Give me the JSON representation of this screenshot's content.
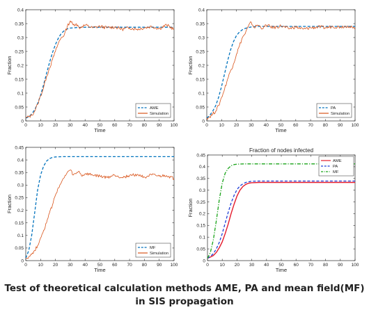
{
  "colors": {
    "ame": "#0072BD",
    "simulation": "#D95319",
    "pa": "#1f3fd8",
    "mf": "#18a318",
    "ame_red": "#e41a2c"
  },
  "caption": "Test of theoretical calculation methods AME, PA and mean field(MF) in SIS propagation",
  "chart_data": [
    {
      "type": "line",
      "title": "",
      "xlabel": "Time",
      "ylabel": "Fraction",
      "xlim": [
        0,
        100
      ],
      "ylim": [
        0,
        0.4
      ],
      "xticks": [
        "0",
        "10",
        "20",
        "30",
        "40",
        "50",
        "60",
        "70",
        "80",
        "90",
        "100"
      ],
      "yticks": [
        "0",
        "0.05",
        "0.1",
        "0.15",
        "0.2",
        "0.25",
        "0.3",
        "0.35",
        "0.4"
      ],
      "legend": "bottom-right",
      "series": [
        {
          "name": "AME",
          "style": "dashed",
          "color": "#0072BD",
          "x": [
            0,
            2,
            4,
            6,
            8,
            10,
            12,
            14,
            16,
            18,
            20,
            22,
            24,
            26,
            28,
            30,
            35,
            40,
            50,
            60,
            70,
            80,
            90,
            100
          ],
          "y": [
            0.01,
            0.015,
            0.025,
            0.04,
            0.062,
            0.092,
            0.13,
            0.17,
            0.21,
            0.245,
            0.275,
            0.298,
            0.315,
            0.325,
            0.331,
            0.334,
            0.336,
            0.337,
            0.337,
            0.337,
            0.337,
            0.337,
            0.337,
            0.337
          ]
        },
        {
          "name": "Simulation",
          "style": "solid",
          "color": "#D95319",
          "x": [
            0,
            2,
            4,
            6,
            8,
            10,
            12,
            14,
            16,
            18,
            20,
            22,
            24,
            26,
            28,
            30,
            32,
            34,
            36,
            38,
            40,
            45,
            50,
            55,
            60,
            65,
            70,
            75,
            80,
            85,
            90,
            95,
            100
          ],
          "y": [
            0.01,
            0.015,
            0.02,
            0.035,
            0.06,
            0.09,
            0.12,
            0.16,
            0.19,
            0.22,
            0.25,
            0.28,
            0.3,
            0.31,
            0.34,
            0.36,
            0.345,
            0.35,
            0.335,
            0.34,
            0.345,
            0.335,
            0.34,
            0.335,
            0.338,
            0.33,
            0.335,
            0.33,
            0.335,
            0.34,
            0.332,
            0.345,
            0.33
          ]
        }
      ]
    },
    {
      "type": "line",
      "title": "",
      "xlabel": "Time",
      "ylabel": "Fraction",
      "xlim": [
        0,
        100
      ],
      "ylim": [
        0,
        0.4
      ],
      "xticks": [
        "0",
        "10",
        "20",
        "30",
        "40",
        "50",
        "60",
        "70",
        "80",
        "90",
        "100"
      ],
      "yticks": [
        "0",
        "0.05",
        "0.1",
        "0.15",
        "0.2",
        "0.25",
        "0.3",
        "0.35",
        "0.4"
      ],
      "legend": "bottom-right",
      "series": [
        {
          "name": "PA",
          "style": "dashed",
          "color": "#0072BD",
          "x": [
            0,
            2,
            4,
            6,
            8,
            10,
            12,
            14,
            16,
            18,
            20,
            22,
            24,
            26,
            28,
            30,
            35,
            40,
            50,
            60,
            70,
            80,
            90,
            100
          ],
          "y": [
            0.01,
            0.02,
            0.035,
            0.055,
            0.085,
            0.125,
            0.17,
            0.215,
            0.255,
            0.285,
            0.307,
            0.32,
            0.328,
            0.333,
            0.336,
            0.338,
            0.34,
            0.34,
            0.34,
            0.34,
            0.34,
            0.34,
            0.34,
            0.34
          ]
        },
        {
          "name": "Simulation",
          "style": "solid",
          "color": "#D95319",
          "x": [
            0,
            2,
            4,
            6,
            8,
            10,
            12,
            14,
            16,
            18,
            20,
            22,
            24,
            26,
            28,
            30,
            32,
            34,
            36,
            38,
            40,
            45,
            50,
            55,
            60,
            65,
            70,
            75,
            80,
            85,
            90,
            95,
            100
          ],
          "y": [
            0.01,
            0.015,
            0.025,
            0.035,
            0.055,
            0.085,
            0.115,
            0.15,
            0.18,
            0.205,
            0.24,
            0.27,
            0.3,
            0.315,
            0.34,
            0.355,
            0.335,
            0.345,
            0.34,
            0.332,
            0.345,
            0.335,
            0.342,
            0.332,
            0.338,
            0.33,
            0.335,
            0.338,
            0.335,
            0.34,
            0.338,
            0.342,
            0.33
          ]
        }
      ]
    },
    {
      "type": "line",
      "title": "",
      "xlabel": "Time",
      "ylabel": "Fraction",
      "xlim": [
        0,
        100
      ],
      "ylim": [
        0,
        0.45
      ],
      "xticks": [
        "0",
        "10",
        "20",
        "30",
        "40",
        "50",
        "60",
        "70",
        "80",
        "90",
        "100"
      ],
      "yticks": [
        "0",
        "0.05",
        "0.1",
        "0.15",
        "0.2",
        "0.25",
        "0.3",
        "0.35",
        "0.4",
        "0.45"
      ],
      "legend": "bottom-right",
      "series": [
        {
          "name": "MF",
          "style": "dashed",
          "color": "#0072BD",
          "x": [
            0,
            2,
            4,
            6,
            8,
            10,
            12,
            14,
            16,
            18,
            20,
            25,
            30,
            40,
            50,
            60,
            70,
            80,
            90,
            100
          ],
          "y": [
            0.01,
            0.04,
            0.1,
            0.19,
            0.28,
            0.34,
            0.375,
            0.395,
            0.405,
            0.41,
            0.412,
            0.413,
            0.413,
            0.413,
            0.413,
            0.413,
            0.413,
            0.413,
            0.413,
            0.413
          ]
        },
        {
          "name": "Simulation",
          "style": "solid",
          "color": "#D95319",
          "x": [
            0,
            2,
            4,
            6,
            8,
            10,
            12,
            14,
            16,
            18,
            20,
            22,
            24,
            26,
            28,
            30,
            32,
            34,
            36,
            38,
            40,
            45,
            50,
            55,
            60,
            65,
            70,
            75,
            80,
            85,
            90,
            95,
            100
          ],
          "y": [
            0.01,
            0.015,
            0.025,
            0.04,
            0.06,
            0.09,
            0.12,
            0.15,
            0.19,
            0.22,
            0.26,
            0.29,
            0.31,
            0.33,
            0.35,
            0.36,
            0.34,
            0.345,
            0.355,
            0.335,
            0.345,
            0.34,
            0.335,
            0.33,
            0.34,
            0.33,
            0.338,
            0.342,
            0.332,
            0.34,
            0.335,
            0.338,
            0.325
          ]
        }
      ]
    },
    {
      "type": "line",
      "title": "Fraction of nodes infected",
      "xlabel": "Time",
      "ylabel": "Fraction",
      "xlim": [
        0,
        100
      ],
      "ylim": [
        0,
        0.45
      ],
      "xticks": [
        "0",
        "10",
        "20",
        "30",
        "40",
        "50",
        "60",
        "70",
        "80",
        "90",
        "100"
      ],
      "yticks": [
        "0",
        "0.05",
        "0.1",
        "0.15",
        "0.2",
        "0.25",
        "0.3",
        "0.35",
        "0.4",
        "0.45"
      ],
      "legend": "top-right",
      "series": [
        {
          "name": "AME",
          "style": "solid",
          "color": "#e41a2c",
          "x": [
            0,
            2,
            4,
            6,
            8,
            10,
            12,
            14,
            16,
            18,
            20,
            22,
            24,
            26,
            28,
            30,
            35,
            40,
            50,
            60,
            70,
            80,
            90,
            100
          ],
          "y": [
            0.01,
            0.015,
            0.022,
            0.035,
            0.055,
            0.08,
            0.115,
            0.155,
            0.2,
            0.24,
            0.275,
            0.3,
            0.316,
            0.325,
            0.33,
            0.332,
            0.333,
            0.333,
            0.333,
            0.333,
            0.333,
            0.333,
            0.333,
            0.333
          ]
        },
        {
          "name": "PA",
          "style": "dashed",
          "color": "#1f3fd8",
          "x": [
            0,
            2,
            4,
            6,
            8,
            10,
            12,
            14,
            16,
            18,
            20,
            22,
            24,
            26,
            28,
            30,
            35,
            40,
            50,
            60,
            70,
            80,
            90,
            100
          ],
          "y": [
            0.01,
            0.018,
            0.03,
            0.05,
            0.078,
            0.115,
            0.16,
            0.205,
            0.245,
            0.278,
            0.303,
            0.318,
            0.327,
            0.333,
            0.336,
            0.338,
            0.339,
            0.339,
            0.339,
            0.339,
            0.339,
            0.339,
            0.339,
            0.339
          ]
        },
        {
          "name": "MF",
          "style": "dashdot",
          "color": "#18a318",
          "x": [
            0,
            2,
            4,
            6,
            8,
            10,
            12,
            14,
            16,
            18,
            20,
            25,
            30,
            40,
            50,
            60,
            70,
            80,
            90,
            100
          ],
          "y": [
            0.01,
            0.035,
            0.09,
            0.17,
            0.26,
            0.33,
            0.372,
            0.393,
            0.404,
            0.409,
            0.411,
            0.412,
            0.412,
            0.412,
            0.412,
            0.412,
            0.412,
            0.412,
            0.412,
            0.412
          ]
        }
      ]
    }
  ]
}
